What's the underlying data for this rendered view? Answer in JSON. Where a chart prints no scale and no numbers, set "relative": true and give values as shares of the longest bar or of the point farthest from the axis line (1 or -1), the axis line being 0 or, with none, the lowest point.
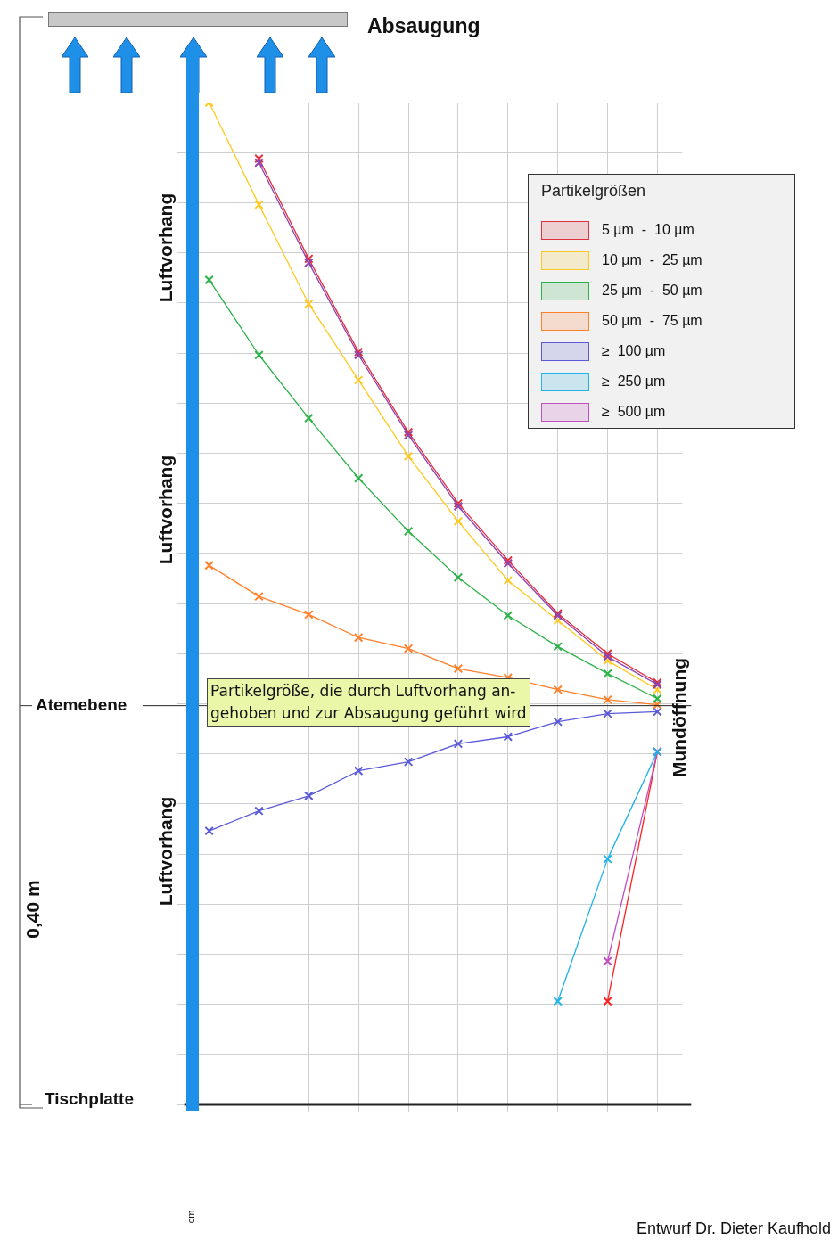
{
  "chart_data": {
    "type": "line",
    "title": "Absaugung",
    "legend_title": "Partikelgrößen",
    "relative": true,
    "categories": [
      null,
      null,
      null,
      null,
      null,
      null,
      null,
      null,
      null,
      null
    ],
    "series": [
      {
        "type": "line",
        "color": "#8e44ad",
        "values": [
          null,
          0.94,
          0.84,
          0.748,
          0.668,
          0.597,
          0.54,
          0.488,
          0.447,
          0.419
        ]
      },
      {
        "name": "5 µm  -  10 µm",
        "color": "#e03040",
        "values": [
          null,
          0.944,
          0.844,
          0.751,
          0.671,
          0.6,
          0.543,
          0.49,
          0.45,
          0.421
        ]
      },
      {
        "name": "10 µm  -  25 µm",
        "color": "#ffc91f",
        "values": [
          1.0,
          0.898,
          0.799,
          0.723,
          0.647,
          0.582,
          0.523,
          0.483,
          0.443,
          0.414
        ]
      },
      {
        "name": "25 µm  -  50 µm",
        "color": "#2db34a",
        "values": [
          0.823,
          0.748,
          0.685,
          0.625,
          0.572,
          0.526,
          0.488,
          0.457,
          0.43,
          0.405
        ]
      },
      {
        "name": "50 µm  -  75 µm",
        "color": "#ff7f2a",
        "values": [
          0.538,
          0.507,
          0.489,
          0.466,
          0.455,
          0.435,
          0.426,
          0.414,
          0.404,
          0.399
        ]
      },
      {
        "name": "≥  100 µm",
        "color": "#5a5ad8",
        "values": [
          0.273,
          0.293,
          0.308,
          0.333,
          0.342,
          0.36,
          0.367,
          0.382,
          0.39,
          0.392
        ]
      },
      {
        "type": "line",
        "name": "≥  250 µm",
        "color": "#1fb3e8",
        "values": [
          null,
          null,
          null,
          null,
          null,
          null,
          null,
          0.103,
          0.245,
          0.352
        ]
      },
      {
        "type": "line",
        "name": "≥  500 µm",
        "color": "#c04fc0",
        "values": [
          null,
          null,
          null,
          null,
          null,
          null,
          null,
          null,
          0.143,
          0.352
        ]
      },
      {
        "type": "line",
        "color": "#ff2020",
        "values": [
          null,
          null,
          null,
          null,
          null,
          null,
          null,
          null,
          0.103,
          0.352
        ]
      }
    ],
    "ref_lines": [
      {
        "axis": "y",
        "value": 0.398,
        "label": "Atemebene"
      },
      {
        "axis": "y",
        "value": 0,
        "label": "Tischplatte"
      }
    ],
    "annotations": [
      "Luftvorhang",
      "Luftvorhang",
      "Luftvorhang",
      "0,40 m",
      "Mundöffnung",
      "cm",
      "Partikelgröße, die durch Luftvorhang an-\ngehoben und zur Absaugung geführt wird",
      "Entwurf Dr. Dieter Kaufhold"
    ],
    "grid": true,
    "legend": "top right",
    "marker": "cross",
    "tick_labels": false
  }
}
